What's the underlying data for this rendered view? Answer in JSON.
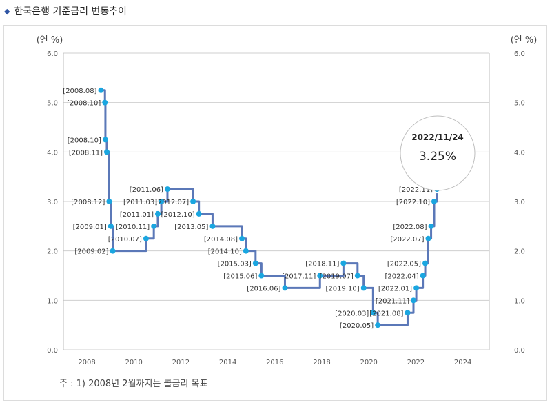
{
  "title": "한국은행 기준금리 변동추이",
  "note": "주 : 1) 2008년 2월까지는 콜금리 목표",
  "colors": {
    "line": "#5b78b8",
    "marker": "#1aa6e0",
    "grid": "#cfcfcf",
    "bullet": "#2f55a4"
  },
  "chart_data": {
    "type": "line",
    "step": true,
    "ylabel_left": "(연 %)",
    "ylabel_right": "(연 %)",
    "ylim": [
      0,
      6
    ],
    "yticks": [
      "0.0",
      "1.0",
      "2.0",
      "3.0",
      "4.0",
      "5.0",
      "6.0"
    ],
    "xlim": [
      2007,
      2025
    ],
    "xticks": [
      "2008",
      "2010",
      "2012",
      "2014",
      "2016",
      "2018",
      "2020",
      "2022",
      "2024"
    ],
    "grid": true,
    "points": [
      {
        "t": 2008.6,
        "y": 5.25,
        "label": "[2008.08]"
      },
      {
        "t": 2008.77,
        "y": 5.0,
        "label": "[2008.10]"
      },
      {
        "t": 2008.79,
        "y": 4.25,
        "label": "[2008.10]"
      },
      {
        "t": 2008.85,
        "y": 4.0,
        "label": "[2008.11]"
      },
      {
        "t": 2008.95,
        "y": 3.0,
        "label": "[2008.12]"
      },
      {
        "t": 2009.02,
        "y": 2.5,
        "label": "[2009.01]"
      },
      {
        "t": 2009.1,
        "y": 2.0,
        "label": "[2009.02]"
      },
      {
        "t": 2010.52,
        "y": 2.25,
        "label": "[2010.07]"
      },
      {
        "t": 2010.85,
        "y": 2.5,
        "label": "[2010.11]"
      },
      {
        "t": 2011.02,
        "y": 2.75,
        "label": "[2011.01]"
      },
      {
        "t": 2011.17,
        "y": 3.0,
        "label": "[2011.03]"
      },
      {
        "t": 2011.43,
        "y": 3.25,
        "label": "[2011.06]"
      },
      {
        "t": 2012.52,
        "y": 3.0,
        "label": "[2012.07]"
      },
      {
        "t": 2012.77,
        "y": 2.75,
        "label": "[2012.10]"
      },
      {
        "t": 2013.35,
        "y": 2.5,
        "label": "[2013.05]"
      },
      {
        "t": 2014.6,
        "y": 2.25,
        "label": "[2014.08]"
      },
      {
        "t": 2014.77,
        "y": 2.0,
        "label": "[2014.10]"
      },
      {
        "t": 2015.18,
        "y": 1.75,
        "label": "[2015.03]"
      },
      {
        "t": 2015.43,
        "y": 1.5,
        "label": "[2015.06]"
      },
      {
        "t": 2016.43,
        "y": 1.25,
        "label": "[2016.06]"
      },
      {
        "t": 2017.92,
        "y": 1.5,
        "label": "[2017.11]"
      },
      {
        "t": 2018.92,
        "y": 1.75,
        "label": "[2018.11]"
      },
      {
        "t": 2019.52,
        "y": 1.5,
        "label": "[2019.07]"
      },
      {
        "t": 2019.78,
        "y": 1.25,
        "label": "[2019.10]"
      },
      {
        "t": 2020.18,
        "y": 0.75,
        "label": "[2020.03]"
      },
      {
        "t": 2020.38,
        "y": 0.5,
        "label": "[2020.05]"
      },
      {
        "t": 2021.65,
        "y": 0.75,
        "label": "[2021.08]"
      },
      {
        "t": 2021.9,
        "y": 1.0,
        "label": "[2021.11]"
      },
      {
        "t": 2022.02,
        "y": 1.25,
        "label": "[2022.01]"
      },
      {
        "t": 2022.3,
        "y": 1.5,
        "label": "[2022.04]"
      },
      {
        "t": 2022.4,
        "y": 1.75,
        "label": "[2022.05]"
      },
      {
        "t": 2022.53,
        "y": 2.25,
        "label": "[2022.07]"
      },
      {
        "t": 2022.65,
        "y": 2.5,
        "label": "[2022.08]"
      },
      {
        "t": 2022.78,
        "y": 3.0,
        "label": "[2022.10]"
      },
      {
        "t": 2022.9,
        "y": 3.25,
        "label": "[2022.11]"
      }
    ],
    "callout": {
      "date": "2022/11/24",
      "value": "3.25%"
    }
  }
}
